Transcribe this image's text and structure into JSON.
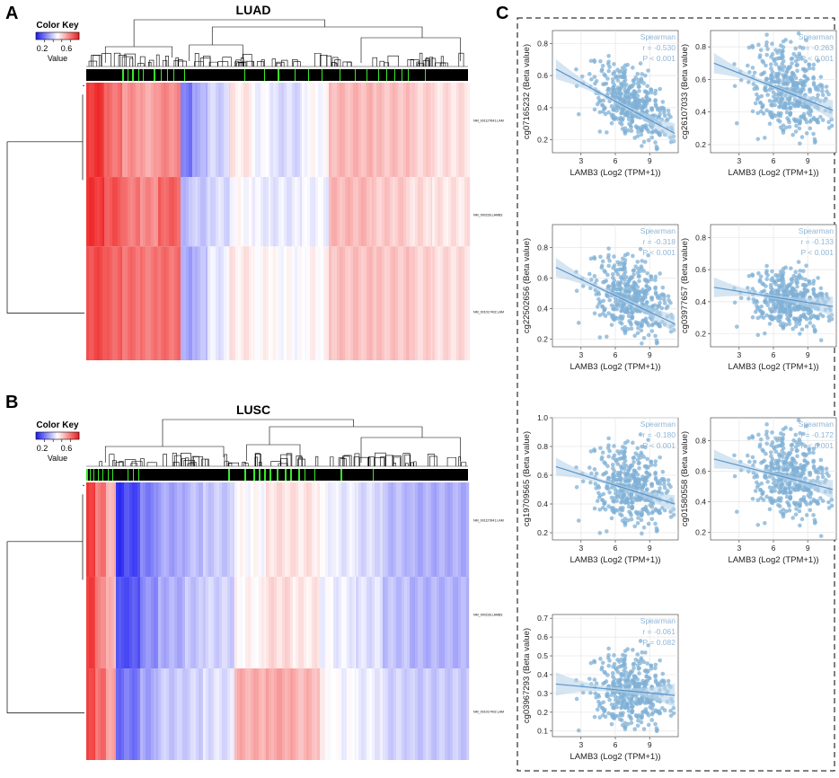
{
  "panels": {
    "a": "A",
    "b": "B",
    "c": "C"
  },
  "colors": {
    "blue": "#1f1ff2",
    "white": "#ffffff",
    "red": "#ef2020",
    "green": "#33ee22",
    "scatter": "#7fb0d6",
    "fit": "#5a94c8",
    "band": "#b9d3ea",
    "legend": "#8fb6d8",
    "grid": "#e6e6e6"
  },
  "heatmaps": [
    {
      "title": "LUAD",
      "color_key": {
        "title": "Color Key",
        "ticks": [
          "0.2",
          "0.6"
        ],
        "label": "Value"
      },
      "row_labels": [
        "NM_001127641.LAM",
        "NM_000228.LAMB3",
        "NM_001017402.LAM"
      ],
      "column_bands": [
        [
          0,
          20,
          0.95,
          0.95,
          0.9
        ],
        [
          20,
          40,
          0.82,
          0.88,
          0.85
        ],
        [
          40,
          60,
          0.74,
          0.8,
          0.82
        ],
        [
          60,
          80,
          0.7,
          0.76,
          0.8
        ],
        [
          80,
          105,
          0.76,
          0.85,
          0.82
        ],
        [
          105,
          118,
          0.2,
          0.35,
          0.3
        ],
        [
          118,
          135,
          0.32,
          0.38,
          0.35
        ],
        [
          135,
          160,
          0.4,
          0.42,
          0.45
        ],
        [
          160,
          185,
          0.55,
          0.5,
          0.55
        ],
        [
          185,
          205,
          0.48,
          0.46,
          0.52
        ],
        [
          205,
          240,
          0.42,
          0.45,
          0.5
        ],
        [
          240,
          270,
          0.5,
          0.47,
          0.52
        ],
        [
          270,
          320,
          0.66,
          0.66,
          0.64
        ],
        [
          320,
          360,
          0.64,
          0.62,
          0.63
        ],
        [
          360,
          385,
          0.6,
          0.58,
          0.6
        ],
        [
          385,
          425,
          0.57,
          0.56,
          0.58
        ]
      ],
      "marker_bands": [
        [
          40,
          42
        ],
        [
          46,
          47
        ],
        [
          51,
          53
        ],
        [
          58,
          59
        ],
        [
          63,
          64
        ],
        [
          75,
          77
        ],
        [
          83,
          84
        ],
        [
          90,
          91
        ],
        [
          97,
          98
        ],
        [
          109,
          110
        ],
        [
          176,
          177
        ],
        [
          198,
          199
        ],
        [
          213,
          215
        ],
        [
          232,
          233
        ],
        [
          247,
          248
        ],
        [
          262,
          263
        ],
        [
          282,
          283
        ],
        [
          299,
          300
        ],
        [
          312,
          313
        ],
        [
          325,
          326
        ],
        [
          334,
          335
        ],
        [
          343,
          344
        ],
        [
          351,
          352
        ],
        [
          358,
          359
        ],
        [
          377,
          378
        ]
      ],
      "row_split": 0.59
    },
    {
      "title": "LUSC",
      "color_key": {
        "title": "Color Key",
        "ticks": [
          "0.2",
          "0.6"
        ],
        "label": "Value"
      },
      "row_labels": [
        "NM_001127641.LAM",
        "NM_000228.LAMB3",
        "NM_001017402.LAM"
      ],
      "column_bands": [
        [
          0,
          10,
          0.95,
          0.92,
          0.93
        ],
        [
          10,
          22,
          0.8,
          0.78,
          0.82
        ],
        [
          22,
          33,
          0.68,
          0.66,
          0.72
        ],
        [
          33,
          42,
          0.06,
          0.1,
          0.18
        ],
        [
          42,
          60,
          0.1,
          0.12,
          0.2
        ],
        [
          60,
          80,
          0.22,
          0.25,
          0.3
        ],
        [
          80,
          110,
          0.3,
          0.32,
          0.38
        ],
        [
          110,
          130,
          0.35,
          0.37,
          0.4
        ],
        [
          130,
          165,
          0.38,
          0.4,
          0.43
        ],
        [
          165,
          200,
          0.5,
          0.52,
          0.68
        ],
        [
          200,
          230,
          0.57,
          0.58,
          0.7
        ],
        [
          230,
          260,
          0.56,
          0.55,
          0.66
        ],
        [
          260,
          275,
          0.48,
          0.48,
          0.52
        ],
        [
          275,
          300,
          0.45,
          0.46,
          0.48
        ],
        [
          300,
          330,
          0.42,
          0.43,
          0.46
        ],
        [
          330,
          360,
          0.35,
          0.36,
          0.4
        ],
        [
          360,
          425,
          0.32,
          0.33,
          0.38
        ]
      ],
      "marker_bands": [
        [
          0,
          2
        ],
        [
          4,
          5
        ],
        [
          8,
          9
        ],
        [
          13,
          14
        ],
        [
          18,
          19
        ],
        [
          24,
          25
        ],
        [
          29,
          30
        ],
        [
          46,
          47
        ],
        [
          52,
          53
        ],
        [
          58,
          59
        ],
        [
          158,
          160
        ],
        [
          176,
          178
        ],
        [
          186,
          188
        ],
        [
          192,
          194
        ],
        [
          198,
          200
        ],
        [
          204,
          206
        ],
        [
          212,
          214
        ],
        [
          221,
          223
        ],
        [
          227,
          229
        ],
        [
          236,
          238
        ],
        [
          243,
          244
        ],
        [
          254,
          255
        ],
        [
          283,
          285
        ],
        [
          319,
          320
        ]
      ],
      "row_split": 0.67
    }
  ],
  "chart_data": [
    {
      "type": "heatmap",
      "title": "LUAD",
      "rows": [
        "NM_001127641.LAM",
        "NM_000228.LAMB3",
        "NM_001017402.LAM"
      ],
      "value_range": [
        0.2,
        0.6
      ],
      "legend": "Color Key (Value)"
    },
    {
      "type": "heatmap",
      "title": "LUSC",
      "rows": [
        "NM_001127641.LAM",
        "NM_000228.LAMB3",
        "NM_001017402.LAM"
      ],
      "value_range": [
        0.2,
        0.6
      ],
      "legend": "Color Key (Value)"
    },
    {
      "type": "scatter",
      "id": "cg07165232",
      "ylabel": "cg07165232 (Beta value)",
      "xlabel": "LAMB3 (Log2 (TPM+1))",
      "xlim": [
        0.5,
        11.5
      ],
      "ylim": [
        0.12,
        0.88
      ],
      "xticks": [
        3,
        6,
        9
      ],
      "yticks": [
        0.2,
        0.4,
        0.6,
        0.8
      ],
      "stats": [
        "Spearman",
        "r = -0.530",
        "P < 0.001"
      ],
      "fit": {
        "x0": 0.8,
        "y0": 0.64,
        "x1": 11.2,
        "y1": 0.24
      },
      "cloud": {
        "cx": 7.6,
        "cy": 0.42,
        "sx": 1.8,
        "sy": 0.12,
        "rho": -0.53,
        "seed": 11
      }
    },
    {
      "type": "scatter",
      "id": "cg26107033",
      "ylabel": "cg26107033 (Beta value)",
      "xlabel": "LAMB3 (Log2 (TPM+1))",
      "xlim": [
        0.5,
        11.5
      ],
      "ylim": [
        0.15,
        0.9
      ],
      "xticks": [
        3,
        6,
        9
      ],
      "yticks": [
        0.2,
        0.4,
        0.6,
        0.8
      ],
      "stats": [
        "Spearman",
        "r = -0.263",
        "P < 0.001"
      ],
      "fit": {
        "x0": 0.8,
        "y0": 0.7,
        "x1": 11.2,
        "y1": 0.41
      },
      "cloud": {
        "cx": 7.6,
        "cy": 0.53,
        "sx": 1.8,
        "sy": 0.14,
        "rho": -0.28,
        "seed": 23
      }
    },
    {
      "type": "scatter",
      "id": "cg22502656",
      "ylabel": "cg22502656 (Beta value)",
      "xlabel": "LAMB3 (Log2 (TPM+1))",
      "xlim": [
        0.5,
        11.5
      ],
      "ylim": [
        0.15,
        0.95
      ],
      "xticks": [
        3,
        6,
        9
      ],
      "yticks": [
        0.2,
        0.4,
        0.6,
        0.8
      ],
      "stats": [
        "Spearman",
        "r = -0.318",
        "P < 0.001"
      ],
      "fit": {
        "x0": 0.8,
        "y0": 0.67,
        "x1": 11.2,
        "y1": 0.3
      },
      "cloud": {
        "cx": 7.6,
        "cy": 0.47,
        "sx": 1.8,
        "sy": 0.13,
        "rho": -0.33,
        "seed": 37
      }
    },
    {
      "type": "scatter",
      "id": "cg03977657",
      "ylabel": "cg03977657 (Beta value)",
      "xlabel": "LAMB3 (Log2 (TPM+1))",
      "xlim": [
        0.5,
        11.5
      ],
      "ylim": [
        0.12,
        0.88
      ],
      "xticks": [
        3,
        6,
        9
      ],
      "yticks": [
        0.2,
        0.4,
        0.6,
        0.8
      ],
      "stats": [
        "Spearman",
        "r = -0.133",
        "P < 0.001"
      ],
      "fit": {
        "x0": 0.8,
        "y0": 0.49,
        "x1": 11.2,
        "y1": 0.37
      },
      "cloud": {
        "cx": 7.6,
        "cy": 0.41,
        "sx": 1.8,
        "sy": 0.09,
        "rho": -0.15,
        "seed": 41
      }
    },
    {
      "type": "scatter",
      "id": "cg19709565",
      "ylabel": "cg19709565 (Beta value)",
      "xlabel": "LAMB3 (Log2 (TPM+1))",
      "xlim": [
        0.5,
        11.5
      ],
      "ylim": [
        0.15,
        1.0
      ],
      "xticks": [
        3,
        6,
        9
      ],
      "yticks": [
        0.2,
        0.4,
        0.6,
        0.8,
        1.0
      ],
      "stats": [
        "Spearman",
        "r = -0.180",
        "P < 0.001"
      ],
      "fit": {
        "x0": 0.8,
        "y0": 0.66,
        "x1": 11.2,
        "y1": 0.4
      },
      "cloud": {
        "cx": 7.6,
        "cy": 0.52,
        "sx": 1.8,
        "sy": 0.14,
        "rho": -0.2,
        "seed": 53
      }
    },
    {
      "type": "scatter",
      "id": "cg01580558",
      "ylabel": "cg01580558 (Beta value)",
      "xlabel": "LAMB3 (Log2 (TPM+1))",
      "xlim": [
        0.5,
        11.5
      ],
      "ylim": [
        0.15,
        0.95
      ],
      "xticks": [
        3,
        6,
        9
      ],
      "yticks": [
        0.2,
        0.4,
        0.6,
        0.8
      ],
      "stats": [
        "Spearman",
        "r = -0.172",
        "P < 0.001"
      ],
      "fit": {
        "x0": 0.8,
        "y0": 0.68,
        "x1": 11.2,
        "y1": 0.48
      },
      "cloud": {
        "cx": 7.6,
        "cy": 0.57,
        "sx": 1.8,
        "sy": 0.14,
        "rho": -0.2,
        "seed": 67
      }
    },
    {
      "type": "scatter",
      "id": "cg03967293",
      "ylabel": "cg03967293 (Beta value)",
      "xlabel": "LAMB3 (Log2 (TPM+1))",
      "xlim": [
        0.5,
        11.5
      ],
      "ylim": [
        0.07,
        0.72
      ],
      "xticks": [
        3,
        6,
        9
      ],
      "yticks": [
        0.1,
        0.2,
        0.3,
        0.4,
        0.5,
        0.6,
        0.7
      ],
      "stats": [
        "Spearman",
        "r = -0.061",
        "P = 0.082"
      ],
      "fit": {
        "x0": 0.8,
        "y0": 0.35,
        "x1": 11.2,
        "y1": 0.29
      },
      "cloud": {
        "cx": 7.6,
        "cy": 0.31,
        "sx": 1.8,
        "sy": 0.1,
        "rho": -0.07,
        "seed": 79
      }
    }
  ]
}
